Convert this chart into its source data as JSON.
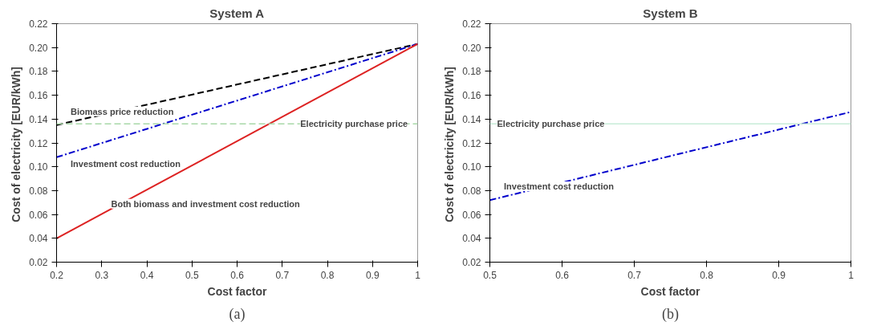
{
  "chart_data": [
    {
      "type": "line",
      "title": "System A",
      "xlabel": "Cost factor",
      "ylabel": "Cost of electricity  [EUR/kWh]",
      "xlim": [
        0.2,
        1
      ],
      "ylim": [
        0.02,
        0.22
      ],
      "xticks": [
        0.2,
        0.3,
        0.4,
        0.5,
        0.6,
        0.7,
        0.8,
        0.9,
        1
      ],
      "yticks": [
        {
          "value": 0.02,
          "label": "0.02"
        },
        {
          "value": 0.04,
          "label": "0.04"
        },
        {
          "value": 0.06,
          "label": "0.06"
        },
        {
          "value": 0.08,
          "label": "0.08"
        },
        {
          "value": 0.1,
          "label": "0.10"
        },
        {
          "value": 0.12,
          "label": "0.12"
        },
        {
          "value": 0.14,
          "label": "0.14"
        },
        {
          "value": 0.16,
          "label": "0.16"
        },
        {
          "value": 0.18,
          "label": "0.18"
        },
        {
          "value": 0.2,
          "label": "0.20"
        },
        {
          "value": 0.22,
          "label": "0.22"
        }
      ],
      "x": [
        0.2,
        1
      ],
      "grid": false,
      "series": [
        {
          "name": "Biomass price reduction",
          "color": "#000000",
          "values": [
            0.135,
            0.203
          ],
          "line_style": "dashed"
        },
        {
          "name": "Investment cost reduction",
          "color": "#0000cc",
          "values": [
            0.108,
            0.203
          ],
          "line_style": "dashdot"
        },
        {
          "name": "Both biomass and investment cost reduction",
          "color": "#dd2222",
          "values": [
            0.04,
            0.203
          ],
          "line_style": "solid"
        }
      ],
      "ref_lines": [
        {
          "axis": "y",
          "value": 0.136,
          "color": "#a8d8a8",
          "line_style": "dashed"
        }
      ],
      "annotations": [
        {
          "text": "Electricity purchase price",
          "x": 0.74,
          "y": 0.136
        },
        "(a)"
      ]
    },
    {
      "type": "line",
      "title": "System B",
      "xlabel": "Cost factor",
      "ylabel": "Cost of electricity  [EUR/kWh]",
      "xlim": [
        0.5,
        1
      ],
      "ylim": [
        0.02,
        0.22
      ],
      "xticks": [
        0.5,
        0.6,
        0.7,
        0.8,
        0.9,
        1
      ],
      "yticks": [
        {
          "value": 0.02,
          "label": "0.02"
        },
        {
          "value": 0.04,
          "label": "0.04"
        },
        {
          "value": 0.06,
          "label": "0.06"
        },
        {
          "value": 0.08,
          "label": "0.08"
        },
        {
          "value": 0.1,
          "label": "0.10"
        },
        {
          "value": 0.12,
          "label": "0.12"
        },
        {
          "value": 0.14,
          "label": "0.14"
        },
        {
          "value": 0.16,
          "label": "0.16"
        },
        {
          "value": 0.18,
          "label": "0.18"
        },
        {
          "value": 0.2,
          "label": "0.20"
        },
        {
          "value": 0.22,
          "label": "0.22"
        }
      ],
      "x": [
        0.5,
        1
      ],
      "grid": false,
      "series": [
        {
          "name": "Investment cost reduction",
          "color": "#0000cc",
          "values": [
            0.072,
            0.146
          ],
          "line_style": "dashdot"
        }
      ],
      "ref_lines": [
        {
          "axis": "y",
          "value": 0.136,
          "color": "#c8ecd8",
          "line_style": "solid"
        }
      ],
      "annotations": [
        {
          "text": "Electricity purchase price",
          "x": 0.51,
          "y": 0.136
        },
        "(b)"
      ]
    }
  ]
}
